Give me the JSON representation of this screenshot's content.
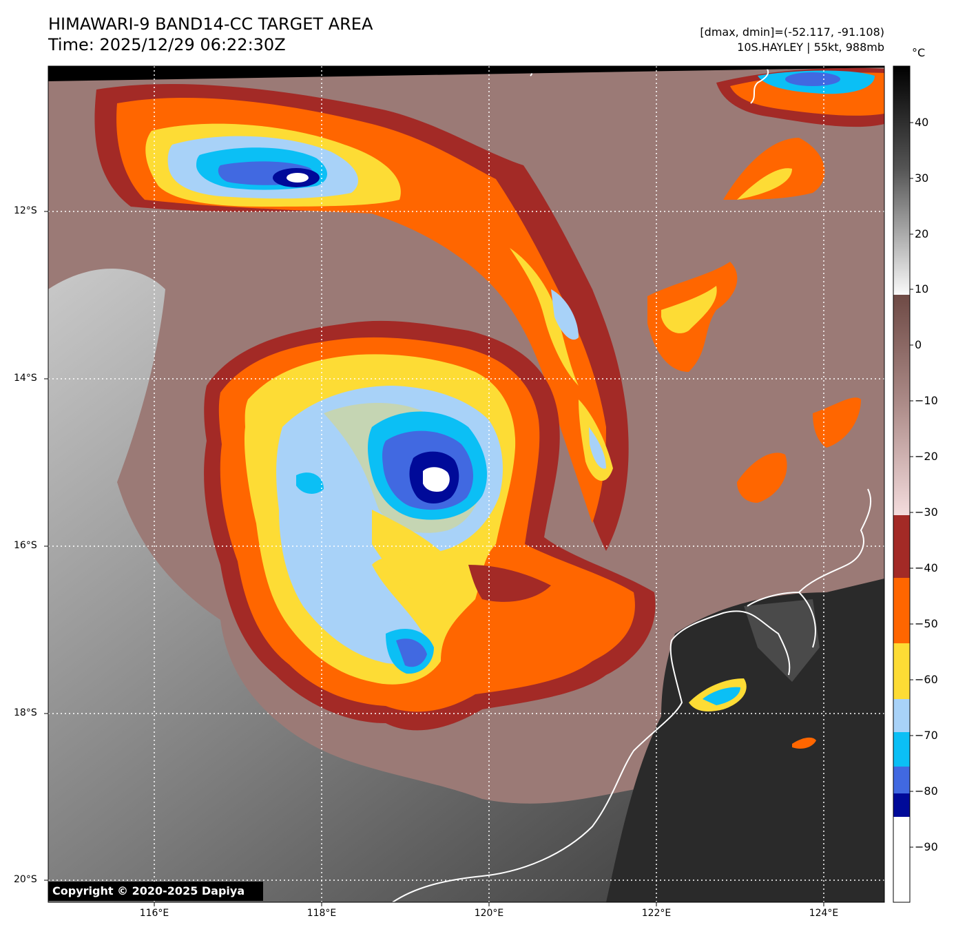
{
  "header": {
    "title": "HIMAWARI-9 BAND14-CC TARGET AREA",
    "time": "Time: 2025/12/29 06:22:30Z",
    "range": "[dmax, dmin]=(-52.117, -91.108)",
    "storm": "10S.HAYLEY | 55kt, 988mb"
  },
  "map": {
    "lat_labels": [
      "12°S",
      "14°S",
      "16°S",
      "18°S",
      "20°S"
    ],
    "lon_labels": [
      "116°E",
      "118°E",
      "120°E",
      "122°E",
      "124°E"
    ],
    "copyright": "Copyright © 2020-2025 Dapiya"
  },
  "colorbar": {
    "unit": "°C",
    "labels": [
      "40",
      "30",
      "20",
      "10",
      "0",
      "−10",
      "−20",
      "−30",
      "−40",
      "−50",
      "−60",
      "−70",
      "−80",
      "−90"
    ],
    "colors": {
      "minus30_minus40": "#a32a26",
      "minus40_minus50": "#ff6600",
      "minus50_minus60": "#fddc35",
      "minus60_minus70": "#a8d2f8",
      "minus70_minus75": "#0bbff5",
      "minus75_minus80": "#4169e1",
      "minus80_minus85": "#000a99",
      "minus85_below": "#ffffff"
    }
  }
}
